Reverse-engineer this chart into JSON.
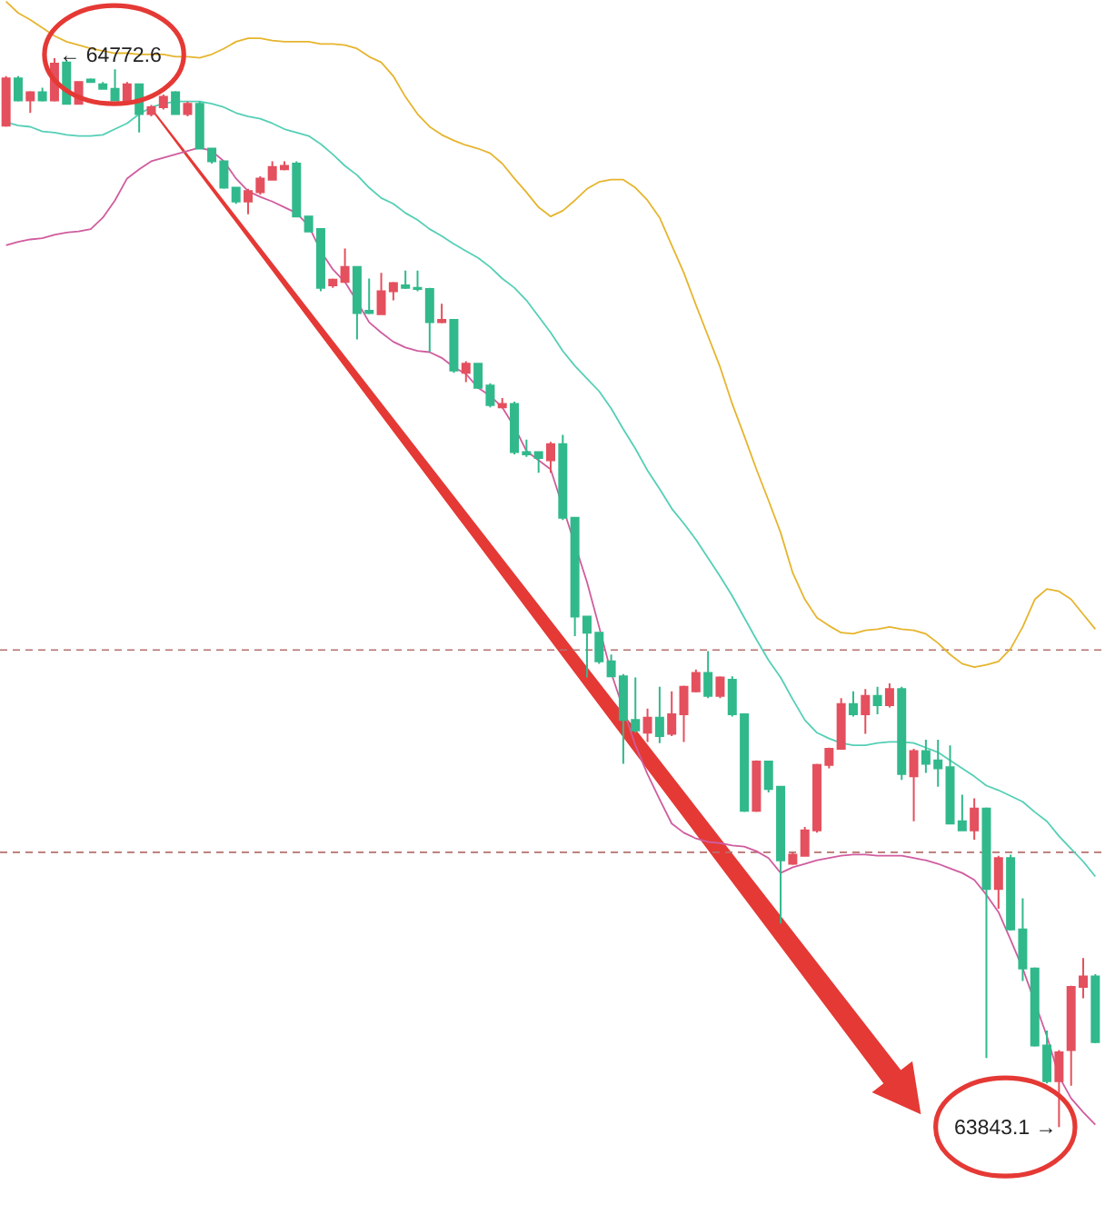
{
  "chart_data": {
    "type": "candlestick",
    "categories": [
      null,
      null,
      null,
      null,
      null,
      null,
      null,
      null,
      null,
      null,
      null,
      null,
      null,
      null,
      null,
      null,
      null,
      null,
      null,
      null,
      null,
      null,
      null,
      null,
      null,
      null,
      null,
      null,
      null,
      null,
      null,
      null,
      null,
      null,
      null,
      null,
      null,
      null,
      null,
      null,
      null,
      null,
      null,
      null,
      null,
      null,
      null,
      null,
      null,
      null,
      null,
      null,
      null,
      null,
      null,
      null,
      null,
      null,
      null,
      null,
      null,
      null,
      null,
      null,
      null,
      null,
      null,
      null,
      null,
      null,
      null,
      null,
      null,
      null,
      null,
      null,
      null,
      null,
      null,
      null,
      null,
      null,
      null,
      null,
      null,
      null,
      null,
      null,
      null,
      null,
      null
    ],
    "ohlc": [
      [
        64714,
        64757,
        64713,
        64755
      ],
      [
        64755,
        64757,
        64735,
        64736
      ],
      [
        64736,
        64744,
        64725,
        64743
      ],
      [
        64743,
        64747,
        64735,
        64736
      ],
      [
        64736,
        64772.6,
        64735,
        64768
      ],
      [
        64769,
        64771,
        64733,
        64733
      ],
      [
        64733,
        64752,
        64733,
        64752
      ],
      [
        64754,
        64755,
        64752,
        64752
      ],
      [
        64750,
        64752,
        64746,
        64746
      ],
      [
        64746,
        64763,
        64736,
        64736
      ],
      [
        64736,
        64752,
        64735,
        64750
      ],
      [
        64750,
        64750,
        64708,
        64724
      ],
      [
        64724,
        64732,
        64722,
        64730
      ],
      [
        64730,
        64741,
        64728,
        64739
      ],
      [
        64743,
        64744,
        64724,
        64724
      ],
      [
        64724,
        64735,
        64722,
        64733
      ],
      [
        64733,
        64735,
        64694,
        64694
      ],
      [
        64694,
        64694,
        64681,
        64683
      ],
      [
        64683,
        64683,
        64659,
        64660
      ],
      [
        64660,
        64660,
        64646,
        64648
      ],
      [
        64648,
        64659,
        64637,
        64657
      ],
      [
        64656,
        64670,
        64654,
        64668
      ],
      [
        64667,
        64683,
        64667,
        64678
      ],
      [
        64676,
        64683,
        64675,
        64679
      ],
      [
        64681,
        64683,
        64635,
        64635
      ],
      [
        64635,
        64635,
        64622,
        64622
      ],
      [
        64624,
        64624,
        64570,
        64573
      ],
      [
        64575,
        64581,
        64573,
        64580
      ],
      [
        64578,
        64607,
        64578,
        64591
      ],
      [
        64591,
        64591,
        64528,
        64551
      ],
      [
        64553,
        64581,
        64550,
        64551
      ],
      [
        64550,
        64586,
        64550,
        64570
      ],
      [
        64570,
        64578,
        64562,
        64577
      ],
      [
        64575,
        64588,
        64572,
        64573
      ],
      [
        64573,
        64588,
        64570,
        64572
      ],
      [
        64572,
        64573,
        64517,
        64543
      ],
      [
        64543,
        64559,
        64542,
        64545
      ],
      [
        64545,
        64545,
        64499,
        64501
      ],
      [
        64499,
        64509,
        64491,
        64507
      ],
      [
        64507,
        64507,
        64485,
        64486
      ],
      [
        64488,
        64490,
        64469,
        64471
      ],
      [
        64469,
        64477,
        64468,
        64472
      ],
      [
        64472,
        64474,
        64428,
        64430
      ],
      [
        64430,
        64441,
        64426,
        64428
      ],
      [
        64430,
        64430,
        64412,
        64425
      ],
      [
        64423,
        64439,
        64412,
        64437
      ],
      [
        64437,
        64445,
        64371,
        64373
      ],
      [
        64373,
        64373,
        64270,
        64287
      ],
      [
        64287,
        64287,
        64234,
        64273
      ],
      [
        64273,
        64273,
        64246,
        64248
      ],
      [
        64248,
        64254,
        64235,
        64235
      ],
      [
        64235,
        64237,
        64159,
        64197
      ],
      [
        64197,
        64234,
        64186,
        64188
      ],
      [
        64186,
        64207,
        64178,
        64199
      ],
      [
        64199,
        64226,
        64177,
        64183
      ],
      [
        64185,
        64222,
        64183,
        64202
      ],
      [
        64202,
        64227,
        64178,
        64226
      ],
      [
        64222,
        64241,
        64221,
        64238
      ],
      [
        64238,
        64257,
        64216,
        64218
      ],
      [
        64218,
        64235,
        64216,
        64234
      ],
      [
        64232,
        64235,
        64200,
        64202
      ],
      [
        64202,
        64202,
        64117,
        64118
      ],
      [
        64118,
        64162,
        64117,
        64161
      ],
      [
        64161,
        64161,
        64134,
        64137
      ],
      [
        64139,
        64139,
        64020,
        64075
      ],
      [
        64072,
        64082,
        64071,
        64080
      ],
      [
        64079,
        64104,
        64079,
        64101
      ],
      [
        64101,
        64159,
        64099,
        64158
      ],
      [
        64158,
        64173,
        64155,
        64172
      ],
      [
        64172,
        64216,
        64172,
        64211
      ],
      [
        64211,
        64222,
        64200,
        64202
      ],
      [
        64202,
        64224,
        64185,
        64218
      ],
      [
        64218,
        64226,
        64202,
        64210
      ],
      [
        64210,
        64229,
        64208,
        64224
      ],
      [
        64224,
        64226,
        64145,
        64150
      ],
      [
        64148,
        64172,
        64109,
        64170
      ],
      [
        64170,
        64180,
        64151,
        64159
      ],
      [
        64162,
        64180,
        64139,
        64155
      ],
      [
        64156,
        64175,
        64107,
        64107
      ],
      [
        64109,
        64132,
        64101,
        64101
      ],
      [
        64101,
        64129,
        64093,
        64120
      ],
      [
        64120,
        64121,
        63903,
        64050
      ],
      [
        64050,
        64079,
        64033,
        64077
      ],
      [
        64077,
        64080,
        64014,
        64015
      ],
      [
        64015,
        64042,
        63970,
        63981
      ],
      [
        63981,
        63982,
        63913,
        63914
      ],
      [
        63914,
        63927,
        63881,
        63883
      ],
      [
        63883,
        63910,
        63843.1,
        63908
      ],
      [
        63910,
        63966,
        63879,
        63965
      ],
      [
        63965,
        63990,
        63955,
        63974
      ],
      [
        63974,
        63976,
        63916,
        63917
      ]
    ],
    "colors": [
      "#e4505e",
      "#31b98c",
      "#e4505e",
      "#31b98c",
      "#e4505e",
      "#31b98c",
      "#e4505e",
      "#31b98c",
      "#31b98c",
      "#31b98c",
      "#e4505e",
      "#31b98c",
      "#e4505e",
      "#e4505e",
      "#31b98c",
      "#e4505e",
      "#31b98c",
      "#31b98c",
      "#31b98c",
      "#31b98c",
      "#e4505e",
      "#e4505e",
      "#e4505e",
      "#e4505e",
      "#31b98c",
      "#31b98c",
      "#31b98c",
      "#e4505e",
      "#e4505e",
      "#31b98c",
      "#31b98c",
      "#e4505e",
      "#e4505e",
      "#31b98c",
      "#31b98c",
      "#31b98c",
      "#e4505e",
      "#31b98c",
      "#e4505e",
      "#31b98c",
      "#31b98c",
      "#e4505e",
      "#31b98c",
      "#31b98c",
      "#31b98c",
      "#e4505e",
      "#31b98c",
      "#31b98c",
      "#31b98c",
      "#31b98c",
      "#31b98c",
      "#31b98c",
      "#31b98c",
      "#e4505e",
      "#31b98c",
      "#e4505e",
      "#e4505e",
      "#e4505e",
      "#31b98c",
      "#e4505e",
      "#31b98c",
      "#31b98c",
      "#e4505e",
      "#31b98c",
      "#31b98c",
      "#e4505e",
      "#e4505e",
      "#e4505e",
      "#e4505e",
      "#e4505e",
      "#31b98c",
      "#e4505e",
      "#31b98c",
      "#e4505e",
      "#31b98c",
      "#e4505e",
      "#31b98c",
      "#31b98c",
      "#31b98c",
      "#31b98c",
      "#e4505e",
      "#31b98c",
      "#e4505e",
      "#31b98c",
      "#31b98c",
      "#31b98c",
      "#31b98c",
      "#e4505e",
      "#e4505e",
      "#e4505e",
      "#31b98c"
    ],
    "series": [
      {
        "type": "line",
        "color": "#e6b52e",
        "values": [
          64822,
          64812,
          64806,
          64799,
          64792,
          64787,
          64784,
          64781,
          64779,
          64777,
          64777,
          64776,
          64776,
          64776,
          64774,
          64774,
          64773,
          64776,
          64781,
          64787,
          64790,
          64790,
          64788,
          64787,
          64787,
          64787,
          64785,
          64785,
          64784,
          64781,
          64774,
          64769,
          64757,
          64739,
          64724,
          64713,
          64706,
          64701,
          64697,
          64694,
          64690,
          64681,
          64668,
          64656,
          64643,
          64635,
          64640,
          64649,
          64659,
          64665,
          64667,
          64667,
          64660,
          64649,
          64634,
          64610,
          64586,
          64558,
          64531,
          64504,
          64472,
          64444,
          64415,
          64388,
          64360,
          64325,
          64302,
          64286,
          64279,
          64273,
          64272,
          64275,
          64276,
          64278,
          64276,
          64275,
          64272,
          64264,
          64254,
          64246,
          64243,
          64245,
          64248,
          64259,
          64278,
          64302,
          64311,
          64309,
          64302,
          64289,
          64276
        ]
      },
      {
        "type": "line",
        "color": "#55cfb6",
        "values": [
          64717,
          64714,
          64713,
          64709,
          64708,
          64706,
          64705,
          64705,
          64706,
          64711,
          64716,
          64724,
          64730,
          64733,
          64735,
          64735,
          64735,
          64733,
          64730,
          64725,
          64722,
          64720,
          64716,
          64711,
          64708,
          64705,
          64698,
          64689,
          64679,
          64671,
          64660,
          64651,
          64646,
          64638,
          64632,
          64624,
          64618,
          64611,
          64605,
          64599,
          64591,
          64581,
          64573,
          64562,
          64548,
          64534,
          64518,
          64505,
          64494,
          64483,
          64468,
          64450,
          64433,
          64414,
          64398,
          64381,
          64368,
          64354,
          64338,
          64322,
          64305,
          64286,
          64267,
          64249,
          64234,
          64215,
          64197,
          64186,
          64181,
          64177,
          64175,
          64175,
          64177,
          64178,
          64178,
          64177,
          64173,
          64169,
          64162,
          64155,
          64148,
          64140,
          64136,
          64131,
          64126,
          64117,
          64109,
          64096,
          64085,
          64074,
          64061
        ]
      },
      {
        "type": "line",
        "color": "#d05c9e",
        "values": [
          64610,
          64613,
          64615,
          64616,
          64619,
          64621,
          64622,
          64624,
          64634,
          64649,
          64668,
          64676,
          64683,
          64686,
          64689,
          64692,
          64695,
          64692,
          64683,
          64668,
          64657,
          64652,
          64648,
          64643,
          64638,
          64627,
          64605,
          64589,
          64578,
          64561,
          64543,
          64534,
          64526,
          64521,
          64518,
          64517,
          64512,
          64504,
          64498,
          64486,
          64479,
          64469,
          64452,
          64431,
          64423,
          64415,
          null,
          null,
          64317,
          64278,
          64238,
          null,
          64175,
          64150,
          64128,
          64107,
          64099,
          64094,
          64091,
          64090,
          64088,
          64087,
          64083,
          64077,
          64064,
          64069,
          64072,
          64075,
          64077,
          64079,
          64080,
          64080,
          64079,
          64079,
          64079,
          64077,
          64075,
          64072,
          64068,
          64064,
          64058,
          64045,
          64030,
          64006,
          63981,
          null,
          63922,
          63887,
          63868,
          63856,
          63845
        ]
      }
    ],
    "ref_lines": [
      {
        "axis": "y",
        "value": 64258,
        "color": "#b5706e",
        "line_style": "dashed"
      },
      {
        "axis": "y",
        "value": 64082,
        "color": "#b5706e",
        "line_style": "dashed"
      }
    ],
    "annotations": [
      {
        "text": "← 64772.6",
        "y": 64772.6
      },
      "63843.1 →"
    ],
    "tick_labels": false
  }
}
